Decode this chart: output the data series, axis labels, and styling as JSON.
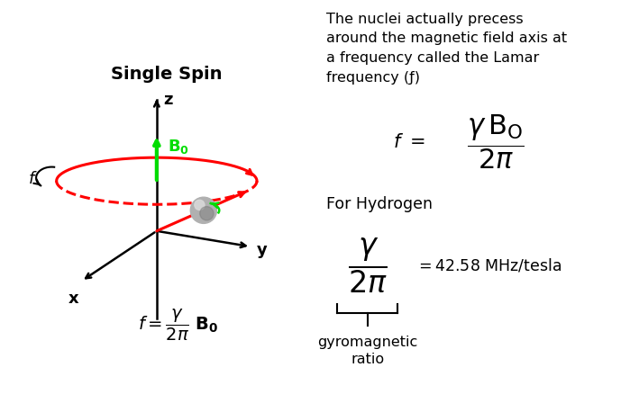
{
  "title": "Single Spin",
  "bg_color": "#ffffff",
  "axis_color": "#000000",
  "z_arrow_color": "#00dd00",
  "b0_color": "#00dd00",
  "red_color": "#ff0000",
  "text_color": "#000000",
  "right_text": "The nuclei actually precess\naround the magnetic field axis at\na frequency called the Lamar\nfrequency (f)",
  "for_hydrogen": "For Hydrogen",
  "gyro_label": "gyromagnetic\nratio",
  "gyro_value": "= 42.58 MHz/tesla"
}
